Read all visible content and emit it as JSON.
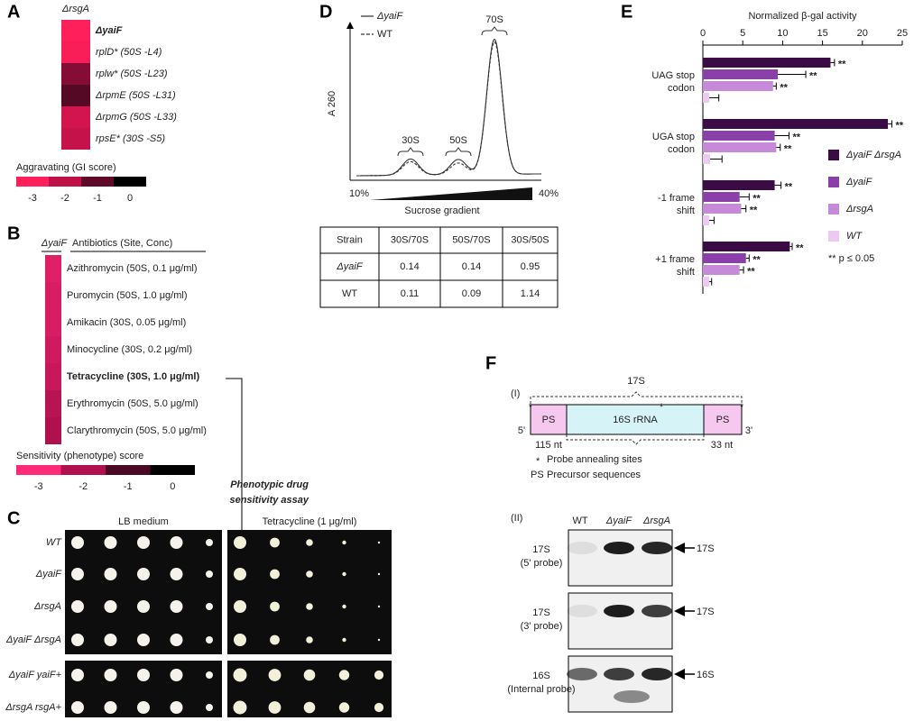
{
  "chart_data": {
    "type": "hbar",
    "title": "Normalized β-gal activity",
    "categories": [
      [
        "UAG stop",
        "codon"
      ],
      [
        "UGA stop",
        "codon"
      ],
      [
        "-1 frame",
        "shift"
      ],
      [
        "+1 frame",
        "shift"
      ]
    ],
    "series": [
      {
        "name": "ΔyaiF ΔrsgA",
        "color": "#3b0b45",
        "values": [
          16,
          23.2,
          9,
          10.9
        ],
        "errors": [
          0.5,
          0.5,
          0.8,
          0.3
        ],
        "significance": [
          "**",
          "**",
          "**",
          "**"
        ]
      },
      {
        "name": "ΔyaiF",
        "color": "#8b3fa8",
        "values": [
          9.4,
          9,
          4.6,
          5.4
        ],
        "errors": [
          3.5,
          1.8,
          1.2,
          0.4
        ],
        "significance": [
          "**",
          "**",
          "**",
          "**"
        ]
      },
      {
        "name": "ΔrsgA",
        "color": "#c68ad8",
        "values": [
          8.8,
          9.2,
          4.8,
          4.6
        ],
        "errors": [
          0.4,
          0.5,
          0.6,
          0.5
        ],
        "significance": [
          "**",
          "**",
          "**",
          "**"
        ]
      },
      {
        "name": "WT",
        "color": "#ecc9f1",
        "values": [
          0.8,
          0.9,
          0.8,
          0.8
        ],
        "errors": [
          1.2,
          1.5,
          0.6,
          0.3
        ]
      }
    ],
    "xlim": [
      0,
      25
    ],
    "xticks": [
      0,
      5,
      10,
      15,
      20,
      25
    ],
    "note": "** p ≤ 0.05",
    "panel": "E"
  },
  "panels": {
    "a": {
      "label": "A",
      "column": "ΔrsgA",
      "rows": [
        {
          "name": "ΔyaiF",
          "score": -3,
          "bold": true
        },
        {
          "name": "rplD* (50S -L4)",
          "score": -2.9
        },
        {
          "name": "rplw* (50S -L23)",
          "score": -1.4
        },
        {
          "name": "ΔrpmE (50S -L31)",
          "score": -0.9
        },
        {
          "name": "ΔrpmG (50S -L33)",
          "score": -2.3
        },
        {
          "name": "rpsE* (30S -S5)",
          "score": -2.1
        }
      ],
      "colorbar": {
        "title": "Aggravating (GI score)",
        "ticks": [
          -3,
          -2,
          -1,
          0
        ],
        "colors": [
          "#ff1f5a",
          "#c01048",
          "#5e0a28",
          "#000000"
        ]
      }
    },
    "b": {
      "label": "B",
      "column": "ΔyaiF",
      "header": "Antibiotics (Site, Conc)",
      "rows": [
        {
          "name": "Azithromycin (50S, 0.1 μg/ml)",
          "score": -2.6
        },
        {
          "name": "Puromycin (50S, 1.0 μg/ml)",
          "score": -2.5
        },
        {
          "name": "Amikacin (30S, 0.05 μg/ml)",
          "score": -2.5
        },
        {
          "name": "Minocycline (30S,  0.2 μg/ml)",
          "score": -2.4
        },
        {
          "name": "Tetracycline (30S,  1.0 μg/ml)",
          "score": -2.3,
          "bold": true
        },
        {
          "name": "Erythromycin (50S, 5.0 μg/ml)",
          "score": -2.1
        },
        {
          "name": "Clarythromycin (50S, 5.0 μg/ml)",
          "score": -2.0
        }
      ],
      "colorbar": {
        "title": "Sensitivity (phenotype) score",
        "ticks": [
          -3,
          -2,
          -1,
          0
        ],
        "colors": [
          "#ff2a78",
          "#b0104e",
          "#4a0a24",
          "#000000"
        ]
      },
      "arrow_text": [
        "Phenotypic drug",
        "sensitivity assay"
      ]
    },
    "c": {
      "label": "C",
      "media": [
        "LB medium",
        "Tetracycline (1 μg/ml)"
      ],
      "strains": [
        "WT",
        "ΔyaiF",
        "ΔrsgA",
        "ΔyaiF ΔrsgA",
        "ΔyaiF yaiF+",
        "ΔrsgA rsgA+"
      ]
    },
    "d": {
      "label": "D",
      "legend": [
        "ΔyaiF",
        "WT"
      ],
      "y_label": "A 260",
      "peaks": [
        "30S",
        "50S",
        "70S"
      ],
      "gradient": [
        "10%",
        "40%"
      ],
      "x_label": "Sucrose gradient",
      "table": {
        "header": [
          "Strain",
          "30S/70S",
          "50S/70S",
          "30S/50S"
        ],
        "rows": [
          [
            "ΔyaiF",
            0.14,
            0.14,
            0.95
          ],
          [
            "WT",
            0.11,
            0.09,
            1.14
          ]
        ]
      }
    },
    "f": {
      "label": "F",
      "part1": "(I)",
      "span": "17S",
      "five": "5'",
      "three": "3'",
      "ps": "PS",
      "rrna": "16S rRNA",
      "left_nt": "115 nt",
      "right_nt": "33 nt",
      "legend": [
        {
          "symbol": "*",
          "text": "Probe annealing sites"
        },
        {
          "symbol": "PS",
          "text": "Precursor sequences"
        }
      ],
      "part2": "(II)",
      "lanes": [
        "WT",
        "ΔyaiF",
        "ΔrsgA"
      ],
      "blots": [
        {
          "label": [
            "17S",
            "(5' probe)"
          ],
          "band": "17S"
        },
        {
          "label": [
            "17S",
            "(3' probe)"
          ],
          "band": "17S"
        },
        {
          "label": [
            "16S",
            "(Internal probe)"
          ],
          "band": "16S"
        }
      ]
    }
  }
}
